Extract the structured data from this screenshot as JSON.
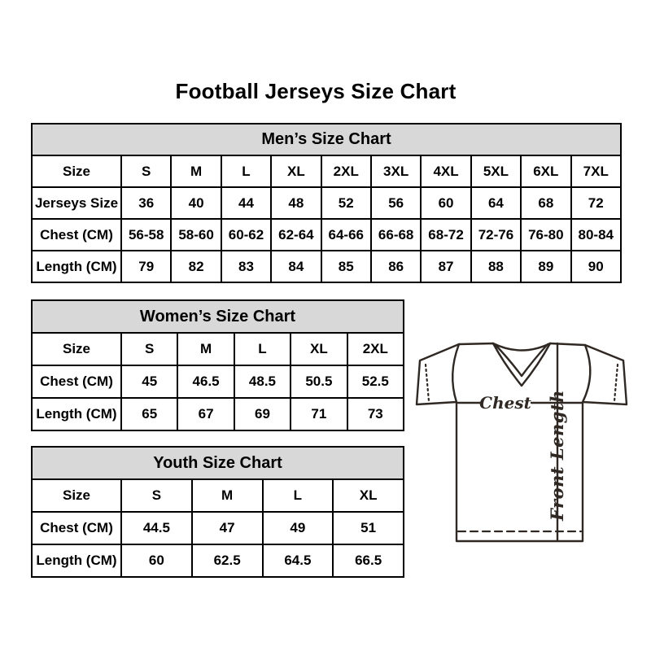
{
  "page": {
    "title": "Football Jerseys Size Chart"
  },
  "colors": {
    "background": "#ffffff",
    "text": "#000000",
    "table_border": "#000000",
    "section_header_bg": "#d8d8d8",
    "diagram_stroke": "#2f2823"
  },
  "tables": [
    {
      "id": "mens",
      "title": "Men’s Size Chart",
      "rows": [
        [
          "Size",
          "S",
          "M",
          "L",
          "XL",
          "2XL",
          "3XL",
          "4XL",
          "5XL",
          "6XL",
          "7XL"
        ],
        [
          "Jerseys Size",
          "36",
          "40",
          "44",
          "48",
          "52",
          "56",
          "60",
          "64",
          "68",
          "72"
        ],
        [
          "Chest (CM)",
          "56-58",
          "58-60",
          "60-62",
          "62-64",
          "64-66",
          "66-68",
          "68-72",
          "72-76",
          "76-80",
          "80-84"
        ],
        [
          "Length (CM)",
          "79",
          "82",
          "83",
          "84",
          "85",
          "86",
          "87",
          "88",
          "89",
          "90"
        ]
      ]
    },
    {
      "id": "womens",
      "title": "Women’s Size Chart",
      "rows": [
        [
          "Size",
          "S",
          "M",
          "L",
          "XL",
          "2XL"
        ],
        [
          "Chest (CM)",
          "45",
          "46.5",
          "48.5",
          "50.5",
          "52.5"
        ],
        [
          "Length (CM)",
          "65",
          "67",
          "69",
          "71",
          "73"
        ]
      ]
    },
    {
      "id": "youth",
      "title": "Youth Size Chart",
      "rows": [
        [
          "Size",
          "S",
          "M",
          "L",
          "XL"
        ],
        [
          "Chest (CM)",
          "44.5",
          "47",
          "49",
          "51"
        ],
        [
          "Length (CM)",
          "60",
          "62.5",
          "64.5",
          "66.5"
        ]
      ]
    }
  ],
  "diagram": {
    "chest_label": "Chest",
    "front_length_label": "Front Length"
  },
  "chart_data": [
    {
      "type": "table",
      "title": "Men’s Size Chart",
      "columns": [
        "Size",
        "S",
        "M",
        "L",
        "XL",
        "2XL",
        "3XL",
        "4XL",
        "5XL",
        "6XL",
        "7XL"
      ],
      "rows": [
        [
          "Jerseys Size",
          36,
          40,
          44,
          48,
          52,
          56,
          60,
          64,
          68,
          72
        ],
        [
          "Chest (CM)",
          "56-58",
          "58-60",
          "60-62",
          "62-64",
          "64-66",
          "66-68",
          "68-72",
          "72-76",
          "76-80",
          "80-84"
        ],
        [
          "Length (CM)",
          79,
          82,
          83,
          84,
          85,
          86,
          87,
          88,
          89,
          90
        ]
      ]
    },
    {
      "type": "table",
      "title": "Women’s Size Chart",
      "columns": [
        "Size",
        "S",
        "M",
        "L",
        "XL",
        "2XL"
      ],
      "rows": [
        [
          "Chest (CM)",
          45,
          46.5,
          48.5,
          50.5,
          52.5
        ],
        [
          "Length (CM)",
          65,
          67,
          69,
          71,
          73
        ]
      ]
    },
    {
      "type": "table",
      "title": "Youth Size Chart",
      "columns": [
        "Size",
        "S",
        "M",
        "L",
        "XL"
      ],
      "rows": [
        [
          "Chest (CM)",
          44.5,
          47,
          49,
          51
        ],
        [
          "Length (CM)",
          60,
          62.5,
          64.5,
          66.5
        ]
      ]
    }
  ]
}
